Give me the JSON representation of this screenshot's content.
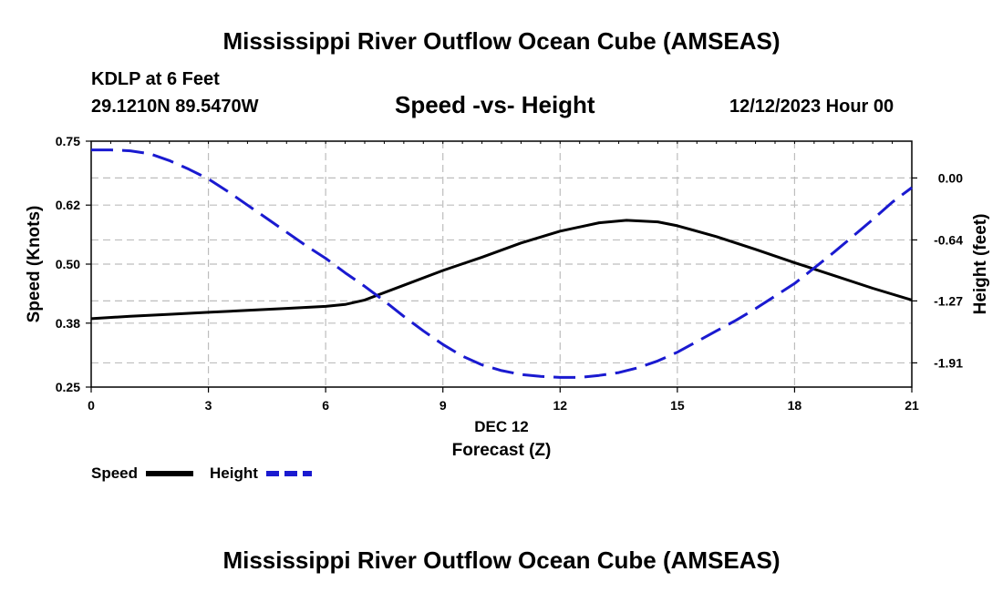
{
  "header": {
    "title_top": "Mississippi River Outflow Ocean Cube (AMSEAS)",
    "station": "KDLP at 6 Feet",
    "coords": "29.1210N  89.5470W",
    "subtitle": "Speed -vs- Height",
    "datetime": "12/12/2023 Hour 00",
    "title_bottom": "Mississippi River Outflow Ocean Cube (AMSEAS)"
  },
  "legend": {
    "speed_label": "Speed",
    "height_label": "Height"
  },
  "colors": {
    "speed": "#000000",
    "height": "#1a1ad0",
    "grid": "#bdbdbd"
  },
  "chart_data": {
    "type": "line",
    "title": "Speed -vs- Height",
    "xlabel": "Forecast (Z)",
    "xlabel_date": "DEC 12",
    "ylabel": "Speed (Knots)",
    "y2label": "Height (feet)",
    "xlim": [
      0,
      21
    ],
    "ylim": [
      0.25,
      0.75
    ],
    "y2lim": [
      -2.16,
      0.38
    ],
    "x_ticks": [
      0,
      3,
      6,
      9,
      12,
      15,
      18,
      21
    ],
    "x_tick_labels": [
      "0",
      "3",
      "6",
      "9",
      "12",
      "15",
      "18",
      "21"
    ],
    "y_ticks": [
      0.25,
      0.38,
      0.5,
      0.62,
      0.75
    ],
    "y_tick_labels": [
      "0.25",
      "0.38",
      "0.50",
      "0.62",
      "0.75"
    ],
    "y2_ticks": [
      0.0,
      -0.64,
      -1.27,
      -1.91
    ],
    "y2_tick_labels": [
      "0.00",
      "-0.64",
      "-1.27",
      "-1.91"
    ],
    "grid": true,
    "series": [
      {
        "name": "Speed",
        "axis": "left",
        "style": "solid",
        "x": [
          0,
          1,
          2,
          3,
          4,
          5,
          6,
          6.5,
          7,
          8,
          9,
          10,
          11,
          12,
          13,
          13.7,
          14.5,
          15,
          16,
          17,
          18,
          19,
          20,
          21
        ],
        "values": [
          0.389,
          0.394,
          0.398,
          0.402,
          0.406,
          0.41,
          0.414,
          0.418,
          0.427,
          0.457,
          0.487,
          0.514,
          0.543,
          0.567,
          0.584,
          0.589,
          0.586,
          0.578,
          0.556,
          0.53,
          0.503,
          0.477,
          0.451,
          0.427
        ]
      },
      {
        "name": "Height",
        "axis": "right",
        "style": "dashed",
        "x": [
          0,
          0.5,
          1,
          1.5,
          2,
          2.5,
          3,
          3.5,
          4,
          4.5,
          5,
          5.5,
          6,
          6.5,
          7,
          7.5,
          8,
          8.5,
          9,
          9.5,
          10,
          10.5,
          11,
          11.5,
          12,
          12.5,
          13,
          13.5,
          14,
          14.5,
          15,
          15.5,
          16,
          16.5,
          17,
          17.5,
          18,
          18.5,
          19,
          19.5,
          20,
          20.5,
          21
        ],
        "values": [
          0.29,
          0.29,
          0.28,
          0.25,
          0.18,
          0.09,
          -0.01,
          -0.14,
          -0.28,
          -0.42,
          -0.56,
          -0.7,
          -0.83,
          -0.98,
          -1.12,
          -1.27,
          -1.43,
          -1.58,
          -1.72,
          -1.84,
          -1.93,
          -1.99,
          -2.03,
          -2.05,
          -2.06,
          -2.06,
          -2.04,
          -2.01,
          -1.96,
          -1.89,
          -1.8,
          -1.69,
          -1.58,
          -1.47,
          -1.35,
          -1.22,
          -1.09,
          -0.93,
          -0.77,
          -0.6,
          -0.43,
          -0.25,
          -0.1
        ]
      }
    ]
  }
}
